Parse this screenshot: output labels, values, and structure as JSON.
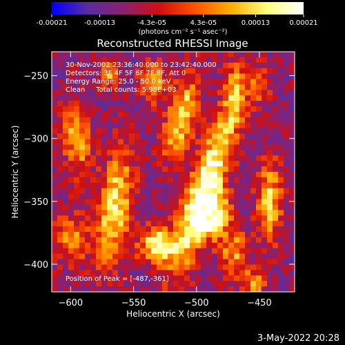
{
  "colorbar": {
    "tick_labels": [
      "-0.00021",
      "-0.00013",
      "-4.3e-05",
      "4.3e-05",
      "0.00013",
      "0.00021"
    ],
    "ticks": [
      -0.00021,
      -0.00013,
      -4.3e-05,
      4.3e-05,
      0.00013,
      0.00021
    ],
    "range": [
      -0.00021,
      0.00021
    ],
    "units_label": "(photons cm⁻² s⁻¹ asec⁻²)",
    "colors": [
      "#0000ff",
      "#5a2ea0",
      "#8a2070",
      "#d01010",
      "#ff5500",
      "#ffb000",
      "#ffff80",
      "#ffffff"
    ]
  },
  "chart_data": {
    "type": "heatmap",
    "title": "Reconstructed RHESSI Image",
    "xlabel": "Heliocentric X (arcsec)",
    "ylabel": "Heliocentric Y (arcsec)",
    "xlim": [
      -615,
      -422
    ],
    "ylim": [
      -422,
      -231
    ],
    "x_ticks": [
      -600,
      -550,
      -500,
      -450
    ],
    "y_ticks": [
      -250,
      -300,
      -350,
      -400
    ],
    "x_tick_labels": [
      "−600",
      "−550",
      "−500",
      "−450"
    ],
    "y_tick_labels": [
      "−250",
      "−300",
      "−350",
      "−400"
    ],
    "grid": false,
    "peak_position": [
      -487,
      -361
    ],
    "sources": [
      {
        "x": -493,
        "y": -340,
        "sx": 9,
        "sy": 48,
        "rot": 0.32,
        "amp": 1.0
      },
      {
        "x": -487,
        "y": -361,
        "sx": 10,
        "sy": 12,
        "rot": 0.0,
        "amp": 0.9
      },
      {
        "x": -512,
        "y": -283,
        "sx": 8,
        "sy": 24,
        "rot": 0.25,
        "amp": 0.75
      },
      {
        "x": -595,
        "y": -300,
        "sx": 8,
        "sy": 20,
        "rot": -0.1,
        "amp": 0.6
      },
      {
        "x": -565,
        "y": -355,
        "sx": 9,
        "sy": 32,
        "rot": 0.15,
        "amp": 0.8
      },
      {
        "x": -530,
        "y": -385,
        "sx": 11,
        "sy": 10,
        "rot": 0.0,
        "amp": 0.85
      },
      {
        "x": -442,
        "y": -350,
        "sx": 7,
        "sy": 22,
        "rot": 0.0,
        "amp": 0.7
      },
      {
        "x": -570,
        "y": -250,
        "sx": 6,
        "sy": 8,
        "rot": 0.0,
        "amp": 0.5
      },
      {
        "x": -535,
        "y": -255,
        "sx": 8,
        "sy": 12,
        "rot": 0.0,
        "amp": 0.55
      },
      {
        "x": -470,
        "y": -262,
        "sx": 6,
        "sy": 18,
        "rot": 0.0,
        "amp": 0.45
      },
      {
        "x": -450,
        "y": -258,
        "sx": 6,
        "sy": 10,
        "rot": 0.0,
        "amp": 0.4
      },
      {
        "x": -455,
        "y": -415,
        "sx": 8,
        "sy": 8,
        "rot": 0.0,
        "amp": 0.5
      },
      {
        "x": -600,
        "y": -380,
        "sx": 10,
        "sy": 14,
        "rot": 0.0,
        "amp": 0.5
      },
      {
        "x": -470,
        "y": -390,
        "sx": 8,
        "sy": 12,
        "rot": 0.0,
        "amp": 0.55
      }
    ]
  },
  "annotations": {
    "time": "30-Nov-2002 23:36:40.000 to 23:42:40.000",
    "detectors": "Detectors: 3F 4F 5F 6F 7F 8F, Att 0",
    "energy": "Energy Range: 25.0 - 50.0 keV",
    "clean": "Clean     Total counts: 5.98E+03",
    "peak": "Position of Peak = [-487,-361]"
  },
  "footer": {
    "date": "3-May-2022 20:28"
  }
}
